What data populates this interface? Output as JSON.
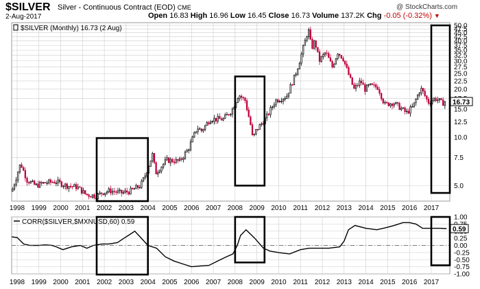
{
  "header": {
    "symbol": "$SILVER",
    "name": "Silver - Continuous Contract (EOD)",
    "exchange": "CME",
    "date": "2-Aug-2017",
    "open_label": "Open",
    "open": "16.83",
    "high_label": "High",
    "high": "16.96",
    "low_label": "Low",
    "low": "16.45",
    "close_label": "Close",
    "close": "16.73",
    "volume_label": "Volume",
    "volume": "137.2K",
    "chg_label": "Chg",
    "chg": "-0.05 (-0.32%)",
    "copyright": "@ StockCharts.com"
  },
  "colors": {
    "up": "#000000",
    "down": "#c0003c",
    "box": "#000000",
    "corr_line": "#000000",
    "grid": "#cccccc"
  },
  "chart_data": [
    {
      "type": "candlestick",
      "legend": "$SILVER (Monthly) 16.73 (2 Aug)",
      "last_value_label": "16.73",
      "y_scale": "log",
      "ylim": [
        4.0,
        52.0
      ],
      "y_ticks": [
        "5.0",
        "7.5",
        "10.0",
        "12.5",
        "15.0",
        "17.5",
        "20.0",
        "22.5",
        "25.0",
        "27.5",
        "30.0",
        "32.5",
        "35.0",
        "37.5",
        "40.0",
        "42.5",
        "45.0",
        "47.5",
        "50.0"
      ],
      "x_ticks": [
        "1998",
        "1999",
        "2000",
        "2001",
        "2002",
        "2003",
        "2004",
        "2005",
        "2006",
        "2007",
        "2008",
        "2009",
        "2010",
        "2011",
        "2012",
        "2013",
        "2014",
        "2015",
        "2016",
        "2017"
      ],
      "x_range": [
        1997.75,
        2017.85
      ],
      "anchors": [
        [
          1997.8,
          4.6
        ],
        [
          1998.05,
          5.9
        ],
        [
          1998.2,
          6.9
        ],
        [
          1998.5,
          5.4
        ],
        [
          1998.9,
          5.0
        ],
        [
          1999.3,
          5.2
        ],
        [
          1999.8,
          5.3
        ],
        [
          2000.3,
          5.0
        ],
        [
          2000.8,
          4.9
        ],
        [
          2001.2,
          4.4
        ],
        [
          2001.7,
          4.3
        ],
        [
          2001.9,
          4.5
        ],
        [
          2002.3,
          4.65
        ],
        [
          2002.8,
          4.5
        ],
        [
          2003.2,
          4.6
        ],
        [
          2003.7,
          5.0
        ],
        [
          2003.9,
          5.7
        ],
        [
          2004.25,
          7.8
        ],
        [
          2004.4,
          6.0
        ],
        [
          2004.9,
          7.2
        ],
        [
          2005.5,
          7.1
        ],
        [
          2005.9,
          8.5
        ],
        [
          2006.3,
          11.5
        ],
        [
          2006.5,
          11.0
        ],
        [
          2006.9,
          13.0
        ],
        [
          2007.5,
          13.0
        ],
        [
          2007.9,
          14.8
        ],
        [
          2008.2,
          18.5
        ],
        [
          2008.5,
          17.0
        ],
        [
          2008.75,
          12.0
        ],
        [
          2008.85,
          9.8
        ],
        [
          2009.0,
          11.0
        ],
        [
          2009.5,
          13.5
        ],
        [
          2009.9,
          17.0
        ],
        [
          2010.4,
          18.0
        ],
        [
          2010.8,
          24.5
        ],
        [
          2011.0,
          30.0
        ],
        [
          2011.3,
          42.0
        ],
        [
          2011.4,
          47.5
        ],
        [
          2011.55,
          36.0
        ],
        [
          2011.7,
          40.0
        ],
        [
          2011.9,
          30.0
        ],
        [
          2012.2,
          34.0
        ],
        [
          2012.5,
          27.5
        ],
        [
          2012.75,
          34.0
        ],
        [
          2013.0,
          31.0
        ],
        [
          2013.3,
          23.5
        ],
        [
          2013.5,
          20.0
        ],
        [
          2013.8,
          22.5
        ],
        [
          2014.0,
          20.0
        ],
        [
          2014.2,
          21.0
        ],
        [
          2014.6,
          20.5
        ],
        [
          2014.9,
          16.0
        ],
        [
          2015.3,
          16.5
        ],
        [
          2015.7,
          15.0
        ],
        [
          2015.9,
          14.2
        ],
        [
          2016.2,
          15.5
        ],
        [
          2016.5,
          19.5
        ],
        [
          2016.6,
          20.0
        ],
        [
          2016.9,
          16.5
        ],
        [
          2017.2,
          17.5
        ],
        [
          2017.4,
          17.0
        ],
        [
          2017.55,
          16.3
        ],
        [
          2017.65,
          16.73
        ]
      ],
      "boxes": [
        {
          "x": [
            2001.65,
            2004.0
          ],
          "y": [
            4.0,
            9.9
          ]
        },
        {
          "x": [
            2008.0,
            2009.35
          ],
          "y": [
            5.0,
            24.0
          ]
        },
        {
          "x": [
            2017.0,
            2017.85
          ],
          "y": [
            4.5,
            50.0
          ]
        }
      ]
    },
    {
      "type": "line",
      "legend": "CORR($SILVER,$MXNUSD,60) 0.59",
      "last_value_label": "0.59",
      "ylim": [
        -1.0,
        1.0
      ],
      "y_ticks": [
        "1.00",
        "0.75",
        "0.50",
        "0.25",
        "0.00",
        "-0.25",
        "-0.50",
        "-0.75",
        "-1.00"
      ],
      "zero_line": 0.0,
      "x_ticks": [
        "1998",
        "1999",
        "2000",
        "2001",
        "2002",
        "2003",
        "2004",
        "2005",
        "2006",
        "2007",
        "2008",
        "2009",
        "2010",
        "2011",
        "2012",
        "2013",
        "2014",
        "2015",
        "2016",
        "2017"
      ],
      "series": [
        {
          "x": [
            1997.75,
            1998.0,
            1998.3,
            1998.6,
            1999.0,
            1999.3,
            1999.6,
            1999.8,
            2000.1,
            2000.5,
            2000.9,
            2001.2,
            2001.5,
            2001.9,
            2002.2,
            2002.6,
            2002.9,
            2003.1,
            2003.4,
            2003.7,
            2004.0,
            2004.4,
            2004.8,
            2005.2,
            2005.6,
            2006.0,
            2006.4,
            2006.8,
            2007.2,
            2007.6,
            2007.9,
            2008.1,
            2008.25,
            2008.5,
            2008.9,
            2009.3,
            2009.6,
            2010.0,
            2010.5,
            2011.0,
            2011.4,
            2011.8,
            2012.3,
            2012.8,
            2013.0,
            2013.2,
            2013.5,
            2014.0,
            2014.5,
            2014.9,
            2015.3,
            2015.7,
            2016.0,
            2016.3,
            2016.6,
            2017.0,
            2017.4,
            2017.7
          ],
          "y": [
            0.3,
            0.28,
            0.05,
            0.0,
            0.0,
            0.02,
            0.0,
            -0.05,
            -0.15,
            -0.05,
            0.0,
            -0.1,
            0.0,
            0.05,
            0.05,
            0.1,
            0.25,
            0.35,
            0.5,
            0.25,
            0.0,
            -0.1,
            -0.4,
            -0.55,
            -0.65,
            -0.75,
            -0.72,
            -0.7,
            -0.55,
            -0.4,
            -0.3,
            0.0,
            0.35,
            0.55,
            0.25,
            -0.1,
            -0.2,
            -0.25,
            -0.3,
            -0.15,
            -0.1,
            -0.1,
            -0.1,
            -0.05,
            0.15,
            0.55,
            0.7,
            0.6,
            0.55,
            0.62,
            0.7,
            0.8,
            0.8,
            0.75,
            0.6,
            0.6,
            0.6,
            0.59
          ]
        }
      ],
      "boxes": [
        {
          "x": [
            2001.65,
            2004.0
          ],
          "y": [
            -1.0,
            1.0
          ]
        },
        {
          "x": [
            2008.0,
            2009.35
          ],
          "y": [
            -0.55,
            1.0
          ]
        },
        {
          "x": [
            2017.0,
            2017.85
          ],
          "y": [
            -0.65,
            1.0
          ]
        }
      ]
    }
  ]
}
